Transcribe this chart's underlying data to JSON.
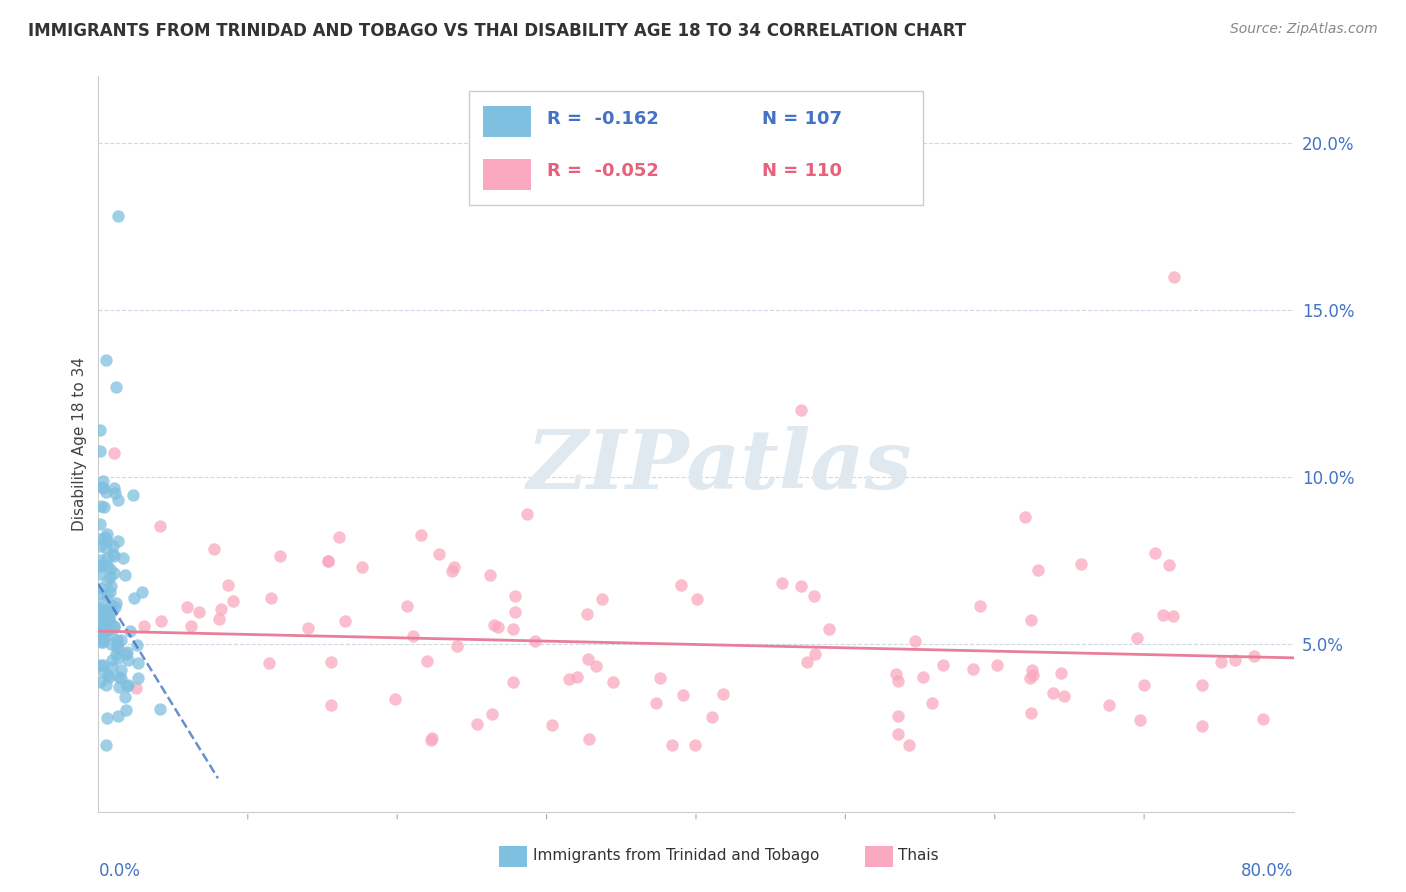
{
  "title": "IMMIGRANTS FROM TRINIDAD AND TOBAGO VS THAI DISABILITY AGE 18 TO 34 CORRELATION CHART",
  "source_text": "Source: ZipAtlas.com",
  "ylabel": "Disability Age 18 to 34",
  "right_yticks": [
    "5.0%",
    "10.0%",
    "15.0%",
    "20.0%"
  ],
  "right_ytick_vals": [
    0.05,
    0.1,
    0.15,
    0.2
  ],
  "xlim": [
    0.0,
    0.8
  ],
  "ylim": [
    0.0,
    0.22
  ],
  "color_tt": "#7fbfdf",
  "color_thai": "#f9a8c0",
  "color_tt_line": "#4472c4",
  "color_thai_line": "#e87e9a",
  "watermark_color": "#e0e8f0",
  "legend_r1": "R =  -0.162",
  "legend_n1": "N = 107",
  "legend_r2": "R =  -0.052",
  "legend_n2": "N = 110",
  "tt_trend_x0": 0.0,
  "tt_trend_x1": 0.08,
  "tt_trend_y0": 0.068,
  "tt_trend_y1": 0.01,
  "thai_trend_x0": 0.0,
  "thai_trend_x1": 0.8,
  "thai_trend_y0": 0.054,
  "thai_trend_y1": 0.046
}
